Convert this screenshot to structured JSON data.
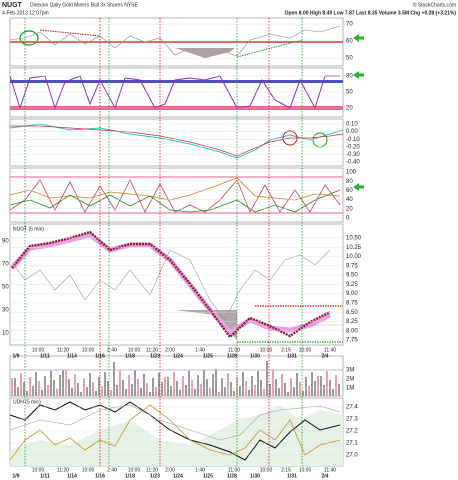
{
  "header": {
    "symbol": "NUGT",
    "name": "Direxion Daily Gold Miners Bull 3x Shares NYSE",
    "date": "4-Feb-2013 12:07pm",
    "quote": "Open 8.00 High 8.49 Low 7.87 Last 8.35 Volume 3.5M Chg +0.28 (+3.21%)",
    "credit": "© StockCharts.com"
  },
  "panels": [
    {
      "labels": [
        "70",
        "60",
        "50"
      ]
    },
    {
      "labels": [
        "80",
        "50",
        "20"
      ]
    },
    {
      "labels": [
        "0.10",
        "0.00",
        "-0.10",
        "-0.20",
        "-0.30",
        "-0.40"
      ]
    },
    {
      "labels": [
        "100",
        "80",
        "60",
        "40",
        "20",
        "0"
      ]
    }
  ],
  "main": {
    "title": "NUGT (5 min)",
    "right_labels": [
      "10.50",
      "10.25",
      "10.00",
      "9.75",
      "9.50",
      "9.25",
      "9.00",
      "8.75",
      "8.50",
      "8.25",
      "8.00",
      "7.75"
    ],
    "left_labels": [
      "90",
      "70",
      "50",
      "30",
      "10"
    ]
  },
  "volume": {
    "labels": [
      "3M",
      "2M",
      "1M"
    ]
  },
  "udh": {
    "title": "UDH (5 min)",
    "labels": [
      "27.4",
      "27.3",
      "27.2",
      "27.1",
      "27.0"
    ]
  },
  "x_axis": {
    "times": [
      "10:00",
      "11:20",
      "10:00",
      "2:40",
      "10:00",
      "11:20",
      "2:00",
      "1:40",
      "11:00",
      "10:00",
      "2:15",
      "10:00",
      "11:40"
    ],
    "dates": [
      "1/9",
      "1/11",
      "1/14",
      "1/16",
      "1/18",
      "1/23",
      "1/24",
      "1/25",
      "1/28",
      "1/30",
      "1/31",
      "2/4"
    ]
  }
}
